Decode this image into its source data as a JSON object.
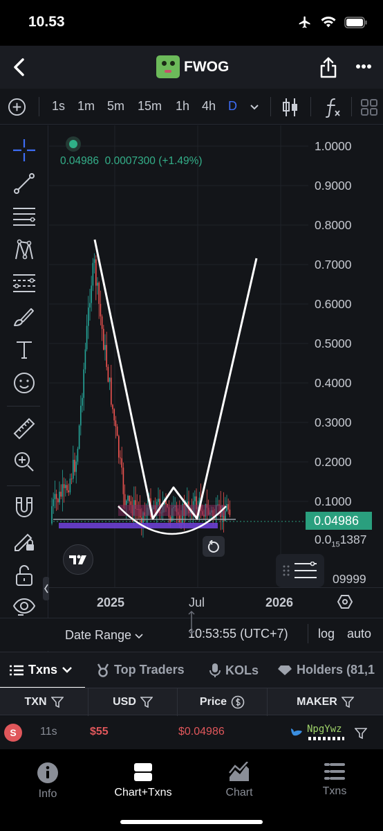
{
  "status_bar": {
    "time": "10.53"
  },
  "header": {
    "title": "FWOG"
  },
  "toolbar": {
    "timeframes": [
      "1s",
      "1m",
      "5m",
      "15m",
      "1h",
      "4h",
      "D"
    ],
    "active_timeframe": "D"
  },
  "chart": {
    "legend": {
      "price": "0.04986",
      "change": "0.0007300",
      "change_pct": "(+1.49%)"
    },
    "y_axis_labels": [
      "1.0000",
      "0.9000",
      "0.8000",
      "0.7000",
      "0.6000",
      "0.5000",
      "0.4000",
      "0.3000",
      "0.2000",
      "0.1000"
    ],
    "current_price": "0.04986",
    "low_label_prefix": "0.0",
    "low_label_sub": "15",
    "low_label_suffix": "1387",
    "bottom_partial_label": "09999",
    "x_axis_labels": [
      "2025",
      "Jul",
      "2026"
    ],
    "date_range_label": "Date Range",
    "time_label": "10:53:55 (UTC+7)",
    "log_label": "log",
    "auto_label": "auto",
    "colors": {
      "up": "#26a69a",
      "down": "#ef5350",
      "accent": "#3d6df5"
    }
  },
  "chart_data": {
    "type": "candlestick",
    "title": "",
    "y_range": [
      0,
      1.0
    ],
    "x_labels": [
      "2025",
      "Jul",
      "2026"
    ],
    "last_price": 0.04986
  },
  "tabs": [
    {
      "label": "Txns",
      "icon": "list-icon",
      "active": true
    },
    {
      "label": "Top Traders",
      "icon": "medal-icon",
      "active": false
    },
    {
      "label": "KOLs",
      "icon": "microphone-icon",
      "active": false
    },
    {
      "label": "Holders (81,1",
      "icon": "diamond-icon",
      "active": false
    }
  ],
  "table": {
    "headers": [
      "TXN",
      "USD",
      "Price",
      "MAKER"
    ],
    "rows": [
      {
        "side": "S",
        "age": "11s",
        "usd": "$55",
        "price": "$0.04986",
        "maker": "NpgYwz"
      }
    ]
  },
  "bottom_nav": [
    {
      "label": "Info",
      "icon": "info-icon",
      "active": false
    },
    {
      "label": "Chart+Txns",
      "icon": "split-view-icon",
      "active": true
    },
    {
      "label": "Chart",
      "icon": "area-chart-icon",
      "active": false
    },
    {
      "label": "Txns",
      "icon": "list-icon",
      "active": false
    }
  ]
}
